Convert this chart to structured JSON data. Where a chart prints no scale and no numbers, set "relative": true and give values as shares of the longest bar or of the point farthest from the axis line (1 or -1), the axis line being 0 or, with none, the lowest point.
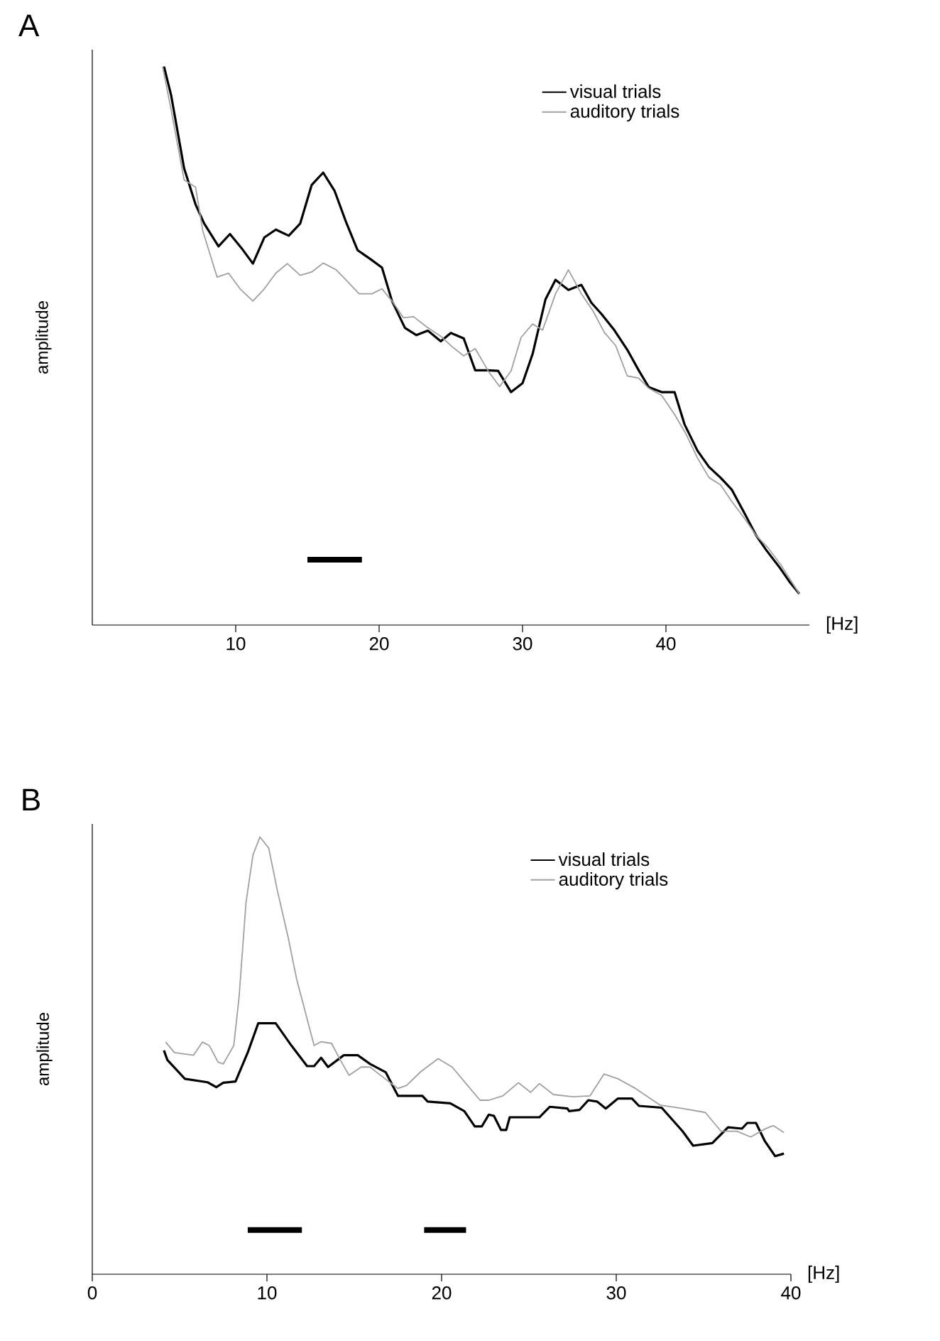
{
  "chart_data": [
    {
      "type": "line",
      "title": "A",
      "xlabel": "[Hz]",
      "ylabel": "amplitude",
      "relative": true,
      "xlim": [
        0,
        50
      ],
      "xticks": [
        10,
        20,
        30,
        40
      ],
      "legend": "top right",
      "series": [
        {
          "name": "visual trials",
          "color": "#000000",
          "x": [
            5.0,
            5.5,
            6.4,
            7.2,
            7.8,
            8.8,
            9.6,
            10.4,
            11.2,
            12.0,
            12.8,
            13.7,
            14.5,
            15.3,
            16.1,
            16.9,
            17.7,
            18.5,
            19.4,
            20.2,
            20.9,
            21.8,
            22.6,
            23.4,
            24.3,
            25.0,
            25.9,
            26.7,
            27.6,
            28.3,
            29.2,
            30.0,
            30.7,
            31.6,
            32.3,
            33.2,
            34.1,
            34.8,
            35.5,
            36.4,
            37.3,
            38.1,
            38.8,
            39.7,
            40.6,
            41.3,
            42.2,
            43.0,
            43.8,
            44.6,
            45.5,
            46.3,
            47.0,
            47.9,
            48.6,
            49.3
          ],
          "values": [
            1.0,
            0.948,
            0.818,
            0.753,
            0.719,
            0.678,
            0.7,
            0.675,
            0.647,
            0.694,
            0.708,
            0.697,
            0.719,
            0.788,
            0.81,
            0.777,
            0.721,
            0.671,
            0.655,
            0.64,
            0.58,
            0.532,
            0.519,
            0.527,
            0.508,
            0.523,
            0.513,
            0.456,
            0.456,
            0.455,
            0.417,
            0.433,
            0.485,
            0.583,
            0.618,
            0.6,
            0.609,
            0.577,
            0.557,
            0.528,
            0.493,
            0.456,
            0.426,
            0.417,
            0.417,
            0.359,
            0.312,
            0.283,
            0.264,
            0.242,
            0.199,
            0.16,
            0.134,
            0.104,
            0.078,
            0.056
          ]
        },
        {
          "name": "auditory trials",
          "color": "#a0a0a0",
          "x": [
            4.9,
            5.5,
            6.4,
            7.2,
            7.7,
            8.7,
            9.5,
            10.3,
            11.2,
            12.0,
            12.8,
            13.6,
            14.5,
            15.3,
            16.1,
            17.0,
            17.8,
            18.6,
            19.5,
            20.2,
            20.9,
            21.7,
            22.4,
            23.3,
            24.3,
            25.1,
            25.9,
            26.7,
            27.6,
            28.4,
            29.2,
            29.9,
            30.7,
            31.4,
            32.3,
            33.2,
            34.1,
            34.9,
            35.7,
            36.5,
            37.3,
            38.1,
            38.8,
            39.7,
            40.6,
            41.4,
            42.2,
            43.0,
            43.8,
            44.6,
            45.5,
            46.3,
            47.1,
            48.0,
            49.3
          ],
          "values": [
            1.0,
            0.922,
            0.797,
            0.784,
            0.706,
            0.623,
            0.63,
            0.602,
            0.58,
            0.602,
            0.63,
            0.647,
            0.626,
            0.632,
            0.648,
            0.636,
            0.615,
            0.593,
            0.593,
            0.602,
            0.58,
            0.55,
            0.552,
            0.534,
            0.517,
            0.498,
            0.482,
            0.495,
            0.455,
            0.427,
            0.455,
            0.515,
            0.539,
            0.528,
            0.593,
            0.636,
            0.593,
            0.563,
            0.524,
            0.5,
            0.446,
            0.442,
            0.424,
            0.411,
            0.377,
            0.342,
            0.299,
            0.264,
            0.251,
            0.221,
            0.19,
            0.16,
            0.139,
            0.108,
            0.056
          ]
        },
        {
          "color": "#000000",
          "x": [
            15.0,
            18.8
          ],
          "values": [
            0.117,
            0.117
          ]
        }
      ]
    },
    {
      "type": "line",
      "title": "B",
      "xlabel": "[Hz]",
      "ylabel": "amplitude",
      "relative": true,
      "xlim": [
        0,
        40
      ],
      "xticks": [
        0,
        10,
        20,
        30,
        40
      ],
      "legend": "top right",
      "series": [
        {
          "name": "visual trials",
          "color": "#000000",
          "x": [
            4.1,
            4.3,
            5.3,
            6.6,
            7.1,
            7.5,
            8.2,
            8.9,
            9.5,
            10.5,
            11.4,
            12.3,
            12.7,
            13.1,
            13.5,
            14.4,
            15.2,
            15.9,
            16.8,
            17.5,
            18.9,
            19.2,
            20.5,
            21.3,
            21.9,
            22.3,
            22.7,
            23.0,
            23.4,
            23.7,
            23.9,
            25.6,
            26.2,
            27.2,
            27.3,
            27.9,
            28.4,
            28.9,
            29.4,
            30.1,
            30.9,
            31.3,
            32.6,
            33.8,
            34.0,
            34.4,
            35.5,
            36.4,
            37.2,
            37.5,
            38.0,
            38.5,
            39.1,
            39.6
          ],
          "values": [
            0.512,
            0.49,
            0.447,
            0.439,
            0.428,
            0.438,
            0.441,
            0.507,
            0.574,
            0.574,
            0.523,
            0.476,
            0.476,
            0.495,
            0.474,
            0.501,
            0.501,
            0.481,
            0.462,
            0.408,
            0.408,
            0.395,
            0.391,
            0.373,
            0.338,
            0.338,
            0.365,
            0.362,
            0.33,
            0.33,
            0.359,
            0.359,
            0.383,
            0.379,
            0.373,
            0.376,
            0.398,
            0.395,
            0.379,
            0.402,
            0.402,
            0.385,
            0.381,
            0.327,
            0.316,
            0.294,
            0.3,
            0.336,
            0.333,
            0.346,
            0.346,
            0.305,
            0.27,
            0.276
          ]
        },
        {
          "name": "auditory trials",
          "color": "#a0a0a0",
          "x": [
            4.2,
            4.7,
            5.8,
            6.3,
            6.7,
            7.2,
            7.5,
            8.1,
            8.4,
            8.8,
            9.2,
            9.6,
            10.1,
            10.6,
            11.2,
            11.7,
            12.2,
            12.7,
            13.1,
            13.7,
            14.2,
            14.7,
            15.4,
            15.9,
            16.7,
            17.5,
            18.0,
            18.8,
            19.8,
            20.6,
            21.4,
            22.2,
            22.7,
            23.5,
            24.4,
            25.1,
            25.6,
            26.4,
            27.5,
            28.5,
            29.3,
            30.1,
            31.1,
            32.5,
            33.8,
            35.1,
            36.0,
            36.9,
            37.7,
            38.5,
            39.0,
            39.6
          ],
          "values": [
            0.531,
            0.507,
            0.501,
            0.531,
            0.523,
            0.485,
            0.481,
            0.523,
            0.632,
            0.85,
            0.959,
            1.0,
            0.975,
            0.877,
            0.773,
            0.675,
            0.599,
            0.523,
            0.532,
            0.528,
            0.49,
            0.455,
            0.474,
            0.474,
            0.449,
            0.425,
            0.432,
            0.463,
            0.493,
            0.474,
            0.436,
            0.398,
            0.398,
            0.408,
            0.438,
            0.416,
            0.436,
            0.411,
            0.406,
            0.408,
            0.458,
            0.447,
            0.425,
            0.387,
            0.379,
            0.37,
            0.327,
            0.327,
            0.314,
            0.332,
            0.34,
            0.324
          ]
        },
        {
          "color": "#000000",
          "x": [
            8.9,
            12.0
          ],
          "values": [
            0.101,
            0.101
          ]
        },
        {
          "color": "#000000",
          "x": [
            19.0,
            21.4
          ],
          "values": [
            0.101,
            0.101
          ]
        }
      ]
    }
  ]
}
